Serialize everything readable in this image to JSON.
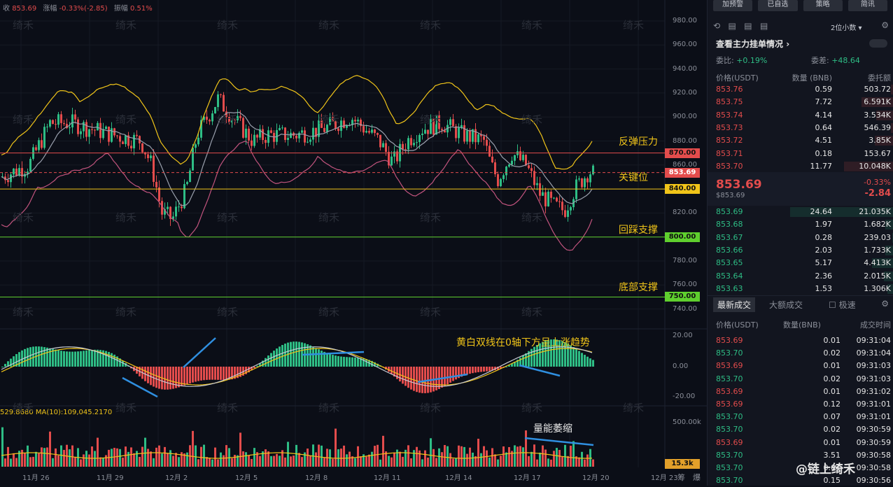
{
  "top_info": {
    "close_label": "收",
    "close": "853.69",
    "change_label": "涨幅",
    "change": "-0.33%(-2.85)",
    "amp_label": "振幅",
    "amp": "0.51%"
  },
  "watermark": "绮禾",
  "price_axis": [
    "980.00",
    "960.00",
    "940.00",
    "920.00",
    "900.00",
    "880.00",
    "860.00",
    "840.00",
    "820.00",
    "800.00",
    "780.00",
    "760.00",
    "740.00"
  ],
  "macd_axis": [
    "20.00",
    "0.00",
    "-20.00"
  ],
  "vol_axis": [
    "500.00k"
  ],
  "price_levels": [
    {
      "value": "870.00",
      "color": "#e34c4c"
    },
    {
      "value": "853.69",
      "color": "#e34c4c"
    },
    {
      "value": "840.00",
      "color": "#f0c419"
    },
    {
      "value": "800.00",
      "color": "#5fcf2e"
    },
    {
      "value": "750.00",
      "color": "#5fcf2e"
    }
  ],
  "vol_badge": "15.3k",
  "annotations": {
    "rebound": "反弹压力",
    "key": "关键位",
    "pullback": "回踩支撑",
    "bottom": "底部支撑",
    "macd_note": "黄白双线在0轴下方呈上涨趋势",
    "volume_note": "量能萎缩"
  },
  "ma_label": "529.8680  MA(10):109,045.2170",
  "x_axis": [
    "11月 26",
    "11月 29",
    "12月 2",
    "12月 5",
    "12月 8",
    "12月 11",
    "12月 14",
    "12月 17",
    "12月 20",
    "12月 23"
  ],
  "bottom_icons": [
    "筹",
    "爆"
  ],
  "toolbar": [
    "加预警",
    "已自选",
    "策略",
    "简讯"
  ],
  "book": {
    "precision": "2位小数",
    "main_force": "查看主力挂单情况",
    "ratio_label": "委比:",
    "ratio": "+0.19%",
    "diff_label": "委差:",
    "diff": "+48.64",
    "headers": [
      "价格(USDT)",
      "数量 (BNB)",
      "委托额"
    ],
    "asks": [
      [
        "853.76",
        "0.59",
        "503.72"
      ],
      [
        "853.75",
        "7.72",
        "6.591K"
      ],
      [
        "853.74",
        "4.14",
        "3.534K"
      ],
      [
        "853.73",
        "0.64",
        "546.39"
      ],
      [
        "853.72",
        "4.51",
        "3.85K"
      ],
      [
        "853.71",
        "0.18",
        "153.67"
      ],
      [
        "853.70",
        "11.77",
        "10.048K"
      ]
    ],
    "last": "853.69",
    "last_sub": "$853.69",
    "last_pct": "-0.33%",
    "last_chg": "-2.84",
    "bids": [
      [
        "853.69",
        "24.64",
        "21.035K"
      ],
      [
        "853.68",
        "1.97",
        "1.682K"
      ],
      [
        "853.67",
        "0.28",
        "239.03"
      ],
      [
        "853.66",
        "2.03",
        "1.733K"
      ],
      [
        "853.65",
        "5.17",
        "4.413K"
      ],
      [
        "853.64",
        "2.36",
        "2.015K"
      ],
      [
        "853.63",
        "1.53",
        "1.306K"
      ]
    ]
  },
  "trades": {
    "tab_latest": "最新成交",
    "tab_large": "大额成交",
    "extreme": "极速",
    "headers": [
      "价格(USDT)",
      "数量(BNB)",
      "成交时间"
    ],
    "rows": [
      [
        "853.69",
        "0.01",
        "09:31:04",
        "r"
      ],
      [
        "853.70",
        "0.02",
        "09:31:04",
        "g"
      ],
      [
        "853.69",
        "0.01",
        "09:31:03",
        "r"
      ],
      [
        "853.70",
        "0.02",
        "09:31:03",
        "g"
      ],
      [
        "853.69",
        "0.01",
        "09:31:02",
        "r"
      ],
      [
        "853.69",
        "0.12",
        "09:31:01",
        "r"
      ],
      [
        "853.70",
        "0.07",
        "09:31:01",
        "g"
      ],
      [
        "853.70",
        "0.02",
        "09:30:59",
        "g"
      ],
      [
        "853.69",
        "0.01",
        "09:30:59",
        "r"
      ],
      [
        "853.70",
        "3.51",
        "09:30:58",
        "g"
      ],
      [
        "853.70",
        "0.01",
        "09:30:58",
        "g"
      ],
      [
        "853.70",
        "0.15",
        "09:30:56",
        "g"
      ]
    ]
  },
  "credit": "@链上绮禾"
}
